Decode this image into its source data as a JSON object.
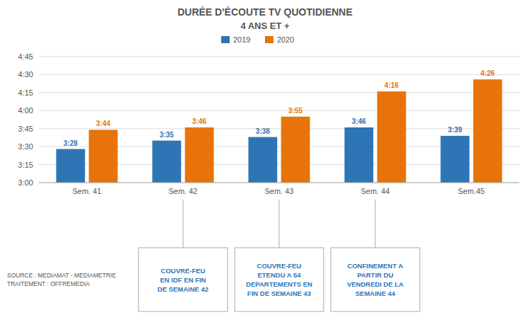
{
  "chart_data": {
    "type": "bar",
    "title": "DURÉE D'ÉCOUTE TV QUOTIDIENNE",
    "subtitle": "4 ANS ET +",
    "categories": [
      "Sem. 41",
      "Sem. 42",
      "Sem. 43",
      "Sem. 44",
      "Sem.45"
    ],
    "series": [
      {
        "name": "2019",
        "color": "#2E75B6",
        "values": [
          208,
          215,
          218,
          226,
          219
        ],
        "value_labels": [
          "3:28",
          "3:35",
          "3:38",
          "3:46",
          "3:39"
        ]
      },
      {
        "name": "2020",
        "color": "#E8730A",
        "values": [
          224,
          226,
          235,
          256,
          266
        ],
        "value_labels": [
          "3:44",
          "3:46",
          "3:55",
          "4:16",
          "4:26"
        ]
      }
    ],
    "ylim": [
      180,
      285
    ],
    "yticks": [
      {
        "value": 180,
        "label": "3:00"
      },
      {
        "value": 195,
        "label": "3:15"
      },
      {
        "value": 210,
        "label": "3:30"
      },
      {
        "value": 225,
        "label": "3:45"
      },
      {
        "value": 240,
        "label": "4:00"
      },
      {
        "value": 255,
        "label": "4:15"
      },
      {
        "value": 270,
        "label": "4:30"
      },
      {
        "value": 285,
        "label": "4:45"
      }
    ],
    "grid": true,
    "legend": "top",
    "data_labels": true,
    "annotations": [
      {
        "text": "COUVRE-FEU\nEN IDF EN FIN\nDE SEMAINE 42",
        "category": "Sem. 42"
      },
      {
        "text": "COUVRE-FEU\nETENDU A 54\nDEPARTEMENTS EN\nFIN DE SEMAINE 43",
        "category": "Sem. 43"
      },
      {
        "text": "CONFINEMENT A\nPARTIR DU\nVENDREDI DE LA\nSEMAINE 44",
        "category": "Sem. 44"
      }
    ],
    "source": "SOURCE : MEDIAMAT - MEDIAMETRIE\nTRAITEMENT : OFFREMEDIA"
  }
}
